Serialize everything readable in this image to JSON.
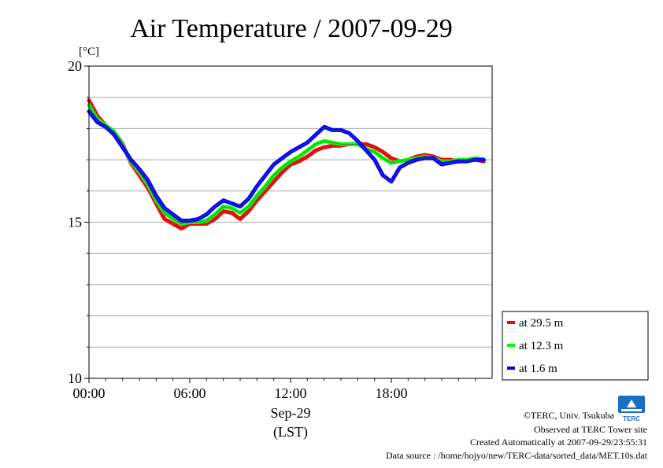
{
  "chart_data": {
    "type": "line",
    "title": "Air Temperature / 2007-09-29",
    "ylabel": "[°C]",
    "xlabel": "(LST)",
    "x_date_label": "Sep-29",
    "xlim": [
      "00:00",
      "24:00"
    ],
    "ylim": [
      10,
      20
    ],
    "x_ticks": [
      "00:00",
      "06:00",
      "12:00",
      "18:00"
    ],
    "y_ticks": [
      "10",
      "15",
      "20"
    ],
    "y_grid": [
      11,
      12,
      13,
      14,
      15,
      16,
      17,
      18,
      19
    ],
    "grid": true,
    "legend_position": "right",
    "x": [
      "00:00",
      "00:30",
      "01:00",
      "01:30",
      "02:00",
      "02:30",
      "03:00",
      "03:30",
      "04:00",
      "04:30",
      "05:00",
      "05:30",
      "06:00",
      "06:30",
      "07:00",
      "07:30",
      "08:00",
      "08:30",
      "09:00",
      "09:30",
      "10:00",
      "10:30",
      "11:00",
      "11:30",
      "12:00",
      "12:30",
      "13:00",
      "13:30",
      "14:00",
      "14:30",
      "15:00",
      "15:30",
      "16:00",
      "16:30",
      "17:00",
      "17:30",
      "18:00",
      "18:30",
      "19:00",
      "19:30",
      "20:00",
      "20:30",
      "21:00",
      "21:30",
      "22:00",
      "22:30",
      "23:00",
      "23:30"
    ],
    "series": [
      {
        "name": "at 29.5 m",
        "color": "#ff0000",
        "values": [
          18.9,
          18.4,
          18.1,
          17.9,
          17.5,
          16.9,
          16.5,
          16.1,
          15.6,
          15.1,
          14.95,
          14.8,
          14.95,
          14.95,
          14.95,
          15.1,
          15.35,
          15.3,
          15.1,
          15.35,
          15.7,
          16.0,
          16.3,
          16.6,
          16.85,
          16.95,
          17.1,
          17.3,
          17.4,
          17.45,
          17.45,
          17.5,
          17.5,
          17.5,
          17.4,
          17.25,
          17.05,
          16.95,
          17.0,
          17.1,
          17.15,
          17.1,
          17.0,
          17.0,
          16.95,
          17.0,
          17.0,
          16.95
        ]
      },
      {
        "name": "at 12.3 m",
        "color": "#00ff00",
        "values": [
          18.75,
          18.3,
          18.1,
          17.9,
          17.45,
          16.95,
          16.6,
          16.2,
          15.7,
          15.3,
          15.1,
          14.95,
          15.0,
          15.0,
          15.05,
          15.25,
          15.5,
          15.45,
          15.3,
          15.5,
          15.85,
          16.15,
          16.5,
          16.75,
          16.95,
          17.1,
          17.3,
          17.5,
          17.6,
          17.55,
          17.5,
          17.5,
          17.5,
          17.35,
          17.25,
          17.05,
          16.9,
          16.95,
          17.0,
          17.05,
          17.1,
          17.05,
          16.95,
          16.95,
          17.0,
          17.0,
          17.05,
          17.0
        ]
      },
      {
        "name": "at 1.6 m",
        "color": "#0000ff",
        "values": [
          18.55,
          18.2,
          18.05,
          17.8,
          17.4,
          17.0,
          16.7,
          16.35,
          15.85,
          15.45,
          15.25,
          15.05,
          15.05,
          15.1,
          15.25,
          15.5,
          15.7,
          15.6,
          15.5,
          15.75,
          16.15,
          16.5,
          16.85,
          17.05,
          17.25,
          17.4,
          17.55,
          17.8,
          18.05,
          17.95,
          17.95,
          17.85,
          17.6,
          17.3,
          17.0,
          16.5,
          16.3,
          16.75,
          16.9,
          17.0,
          17.05,
          17.05,
          16.85,
          16.9,
          16.95,
          16.95,
          17.0,
          17.0
        ]
      }
    ]
  },
  "credits": {
    "copyright": "©TERC, Univ. Tsukuba",
    "observed": "Observed at TERC Tower site",
    "created": "Created Automatically at 2007-09-29/23:55:31",
    "source": "Data source : /home/hojyo/new/TERC-data/sorted_data/MET.10s.dat"
  },
  "logo": {
    "text": "TERC",
    "color": "#1a6fc4"
  }
}
